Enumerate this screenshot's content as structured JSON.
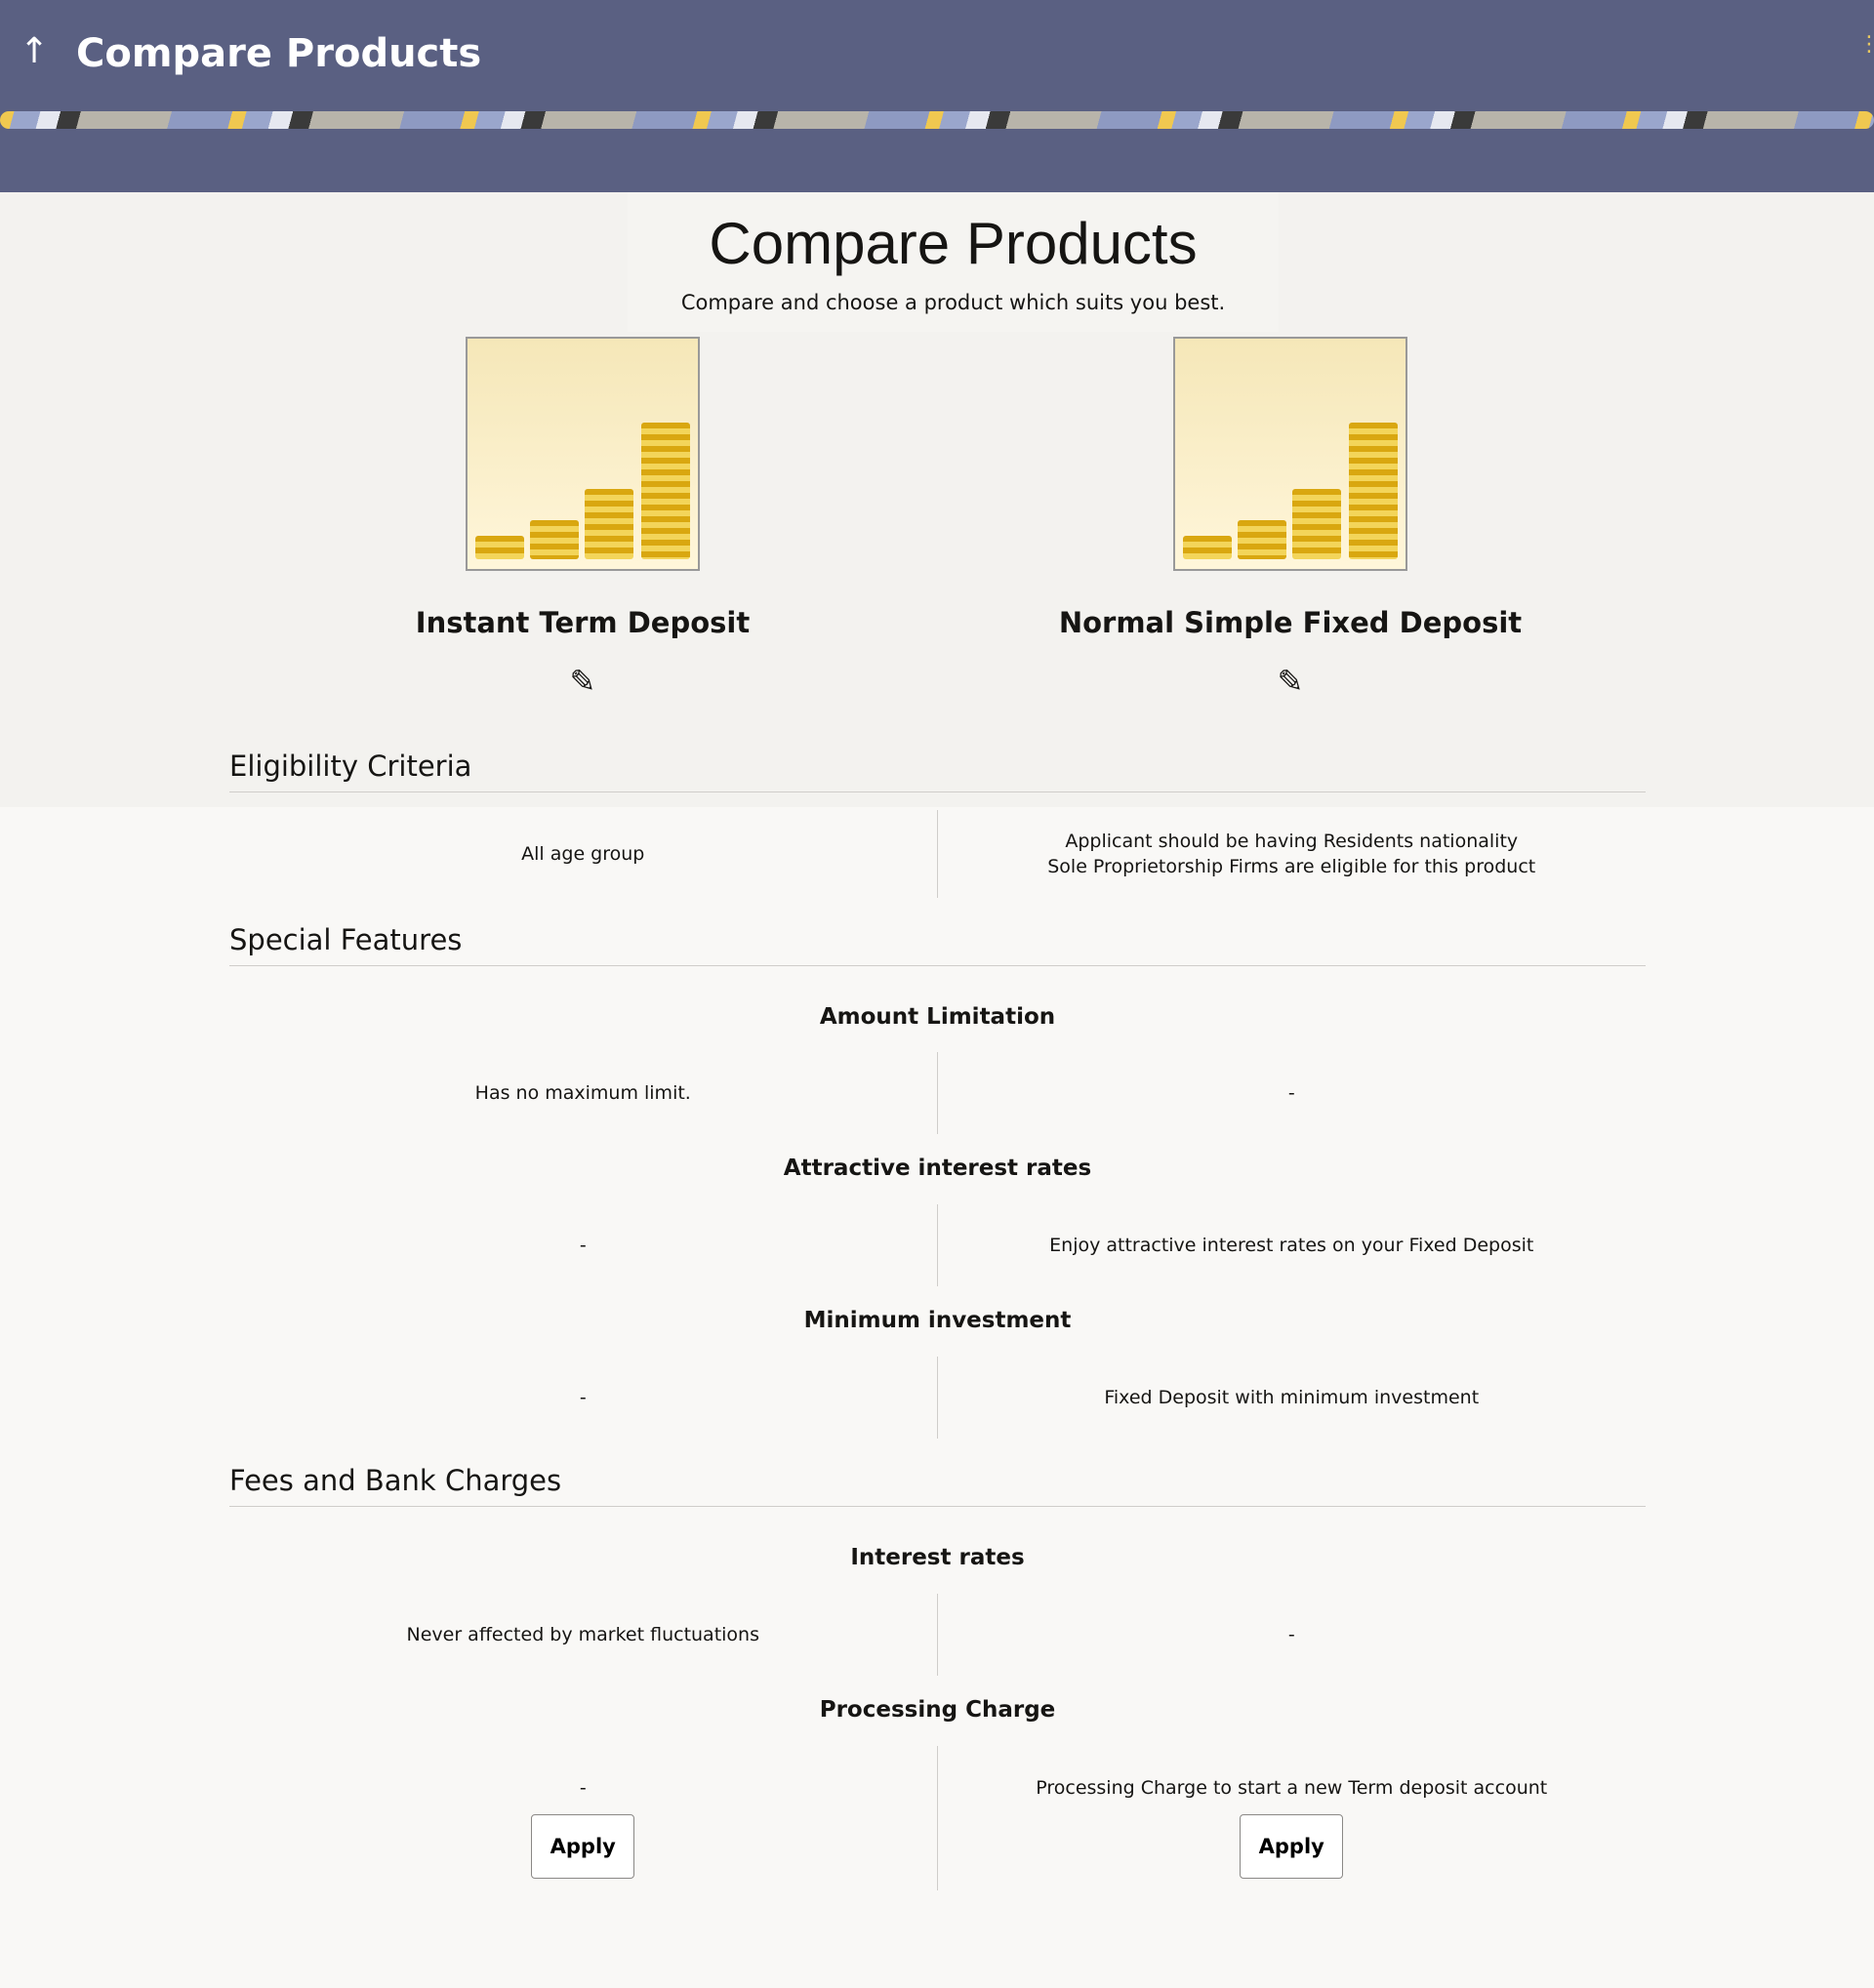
{
  "header": {
    "title": "Compare Products",
    "back_icon": "arrow-up-icon",
    "menu_icon": "kebab-icon"
  },
  "hero": {
    "title": "Compare Products",
    "subtitle": "Compare and choose a product which suits you best."
  },
  "products": [
    {
      "name": "Instant Term Deposit"
    },
    {
      "name": "Normal Simple Fixed Deposit"
    }
  ],
  "sections": {
    "eligibility": {
      "title": "Eligibility Criteria",
      "left": [
        "All age group"
      ],
      "right": [
        "Applicant should be having Residents nationality",
        "Sole Proprietorship Firms are eligible for this product"
      ]
    },
    "special": {
      "title": "Special Features",
      "items": [
        {
          "label": "Amount Limitation",
          "left": "Has no maximum limit.",
          "right": "-"
        },
        {
          "label": "Attractive interest rates",
          "left": "-",
          "right": "Enjoy attractive interest rates on your Fixed Deposit"
        },
        {
          "label": "Minimum investment",
          "left": "-",
          "right": "Fixed Deposit with minimum investment"
        }
      ]
    },
    "fees": {
      "title": "Fees and Bank Charges",
      "items": [
        {
          "label": "Interest rates",
          "left": "Never affected by market fluctuations",
          "right": "-"
        },
        {
          "label": "Processing Charge",
          "left": "-",
          "right": "Processing Charge to start a new Term deposit account"
        }
      ]
    }
  },
  "apply_label": "Apply"
}
